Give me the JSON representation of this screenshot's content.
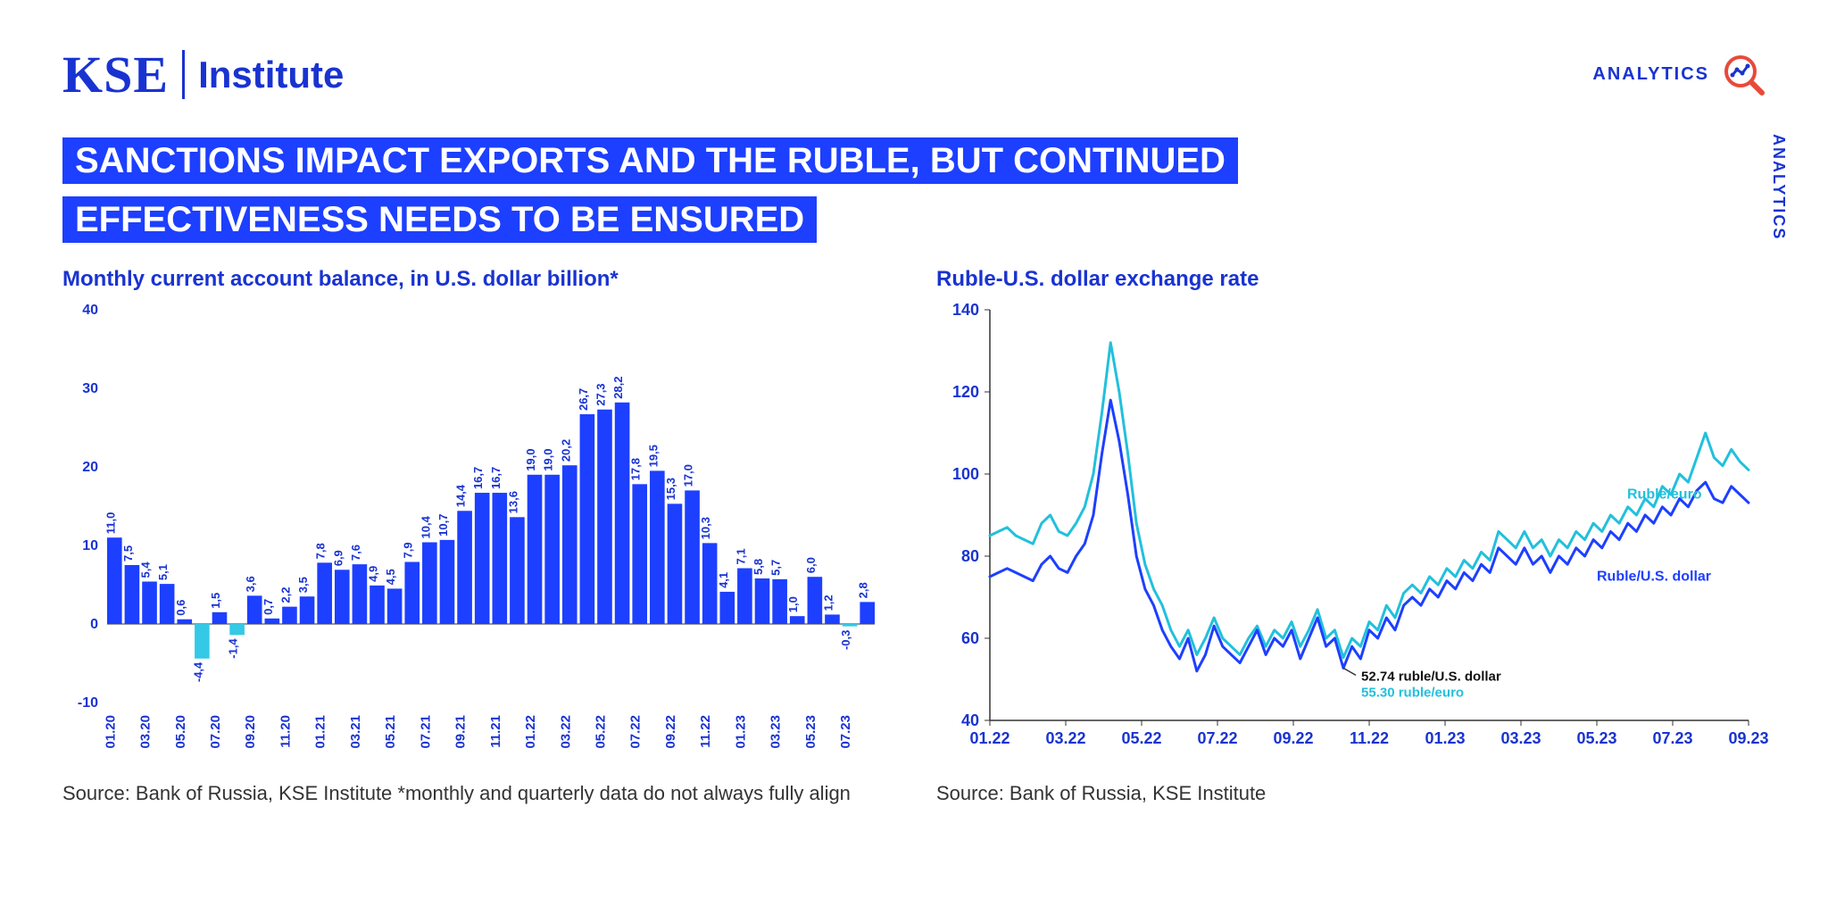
{
  "header": {
    "logo_text": "KSE",
    "institute_text": "Institute",
    "analytics_label": "ANALYTICS",
    "analytics_vertical": "ANALYTICS"
  },
  "headline": "SANCTIONS IMPACT EXPORTS AND THE RUBLE, BUT CONTINUED EFFECTIVENESS NEEDS TO BE ENSURED",
  "colors": {
    "brand_blue": "#1933d1",
    "bar_main": "#1d3fff",
    "bar_neg": "#34c9e6",
    "line_usd": "#1d3fff",
    "line_eur": "#22c0dc",
    "icon_red": "#e84a3a",
    "axis": "#888888",
    "text": "#222222"
  },
  "bar_chart": {
    "title": "Monthly current account balance, in U.S. dollar billion*",
    "source": "Source: Bank of Russia, KSE Institute *monthly and quarterly data do not always fully align",
    "ylim": [
      -10,
      40
    ],
    "ytick_step": 10,
    "x_labels": [
      "01.20",
      "03.20",
      "05.20",
      "07.20",
      "09.20",
      "11.20",
      "01.21",
      "03.21",
      "05.21",
      "07.21",
      "09.21",
      "11.21",
      "01.22",
      "03.22",
      "05.22",
      "07.22",
      "09.22",
      "11.22",
      "01.23",
      "03.23",
      "05.23",
      "07.23"
    ],
    "bar_labels": [
      "11,0",
      "7,5",
      "5,4",
      "5,1",
      "0,6",
      "-4,4",
      "1,5",
      "-1,4",
      "3,6",
      "0,7",
      "2,2",
      "3,5",
      "7,8",
      "6,9",
      "7,6",
      "4,9",
      "4,5",
      "7,9",
      "10,4",
      "10,7",
      "14,4",
      "16,7",
      "16,7",
      "13,6",
      "19,0",
      "19,0",
      "20,2",
      "26,7",
      "27,3",
      "28,2",
      "17,8",
      "19,5",
      "15,3",
      "17,0",
      "10,3",
      "4,1",
      "7,1",
      "5,8",
      "5,7",
      "1,0",
      "6,0",
      "1,2",
      "-0,3",
      "2,8"
    ],
    "values": [
      11.0,
      7.5,
      5.4,
      5.1,
      0.6,
      -4.4,
      1.5,
      -1.4,
      3.6,
      0.7,
      2.2,
      3.5,
      7.8,
      6.9,
      7.6,
      4.9,
      4.5,
      7.9,
      10.4,
      10.7,
      14.4,
      16.7,
      16.7,
      13.6,
      19.0,
      19.0,
      20.2,
      26.7,
      27.3,
      28.2,
      17.8,
      19.5,
      15.3,
      17.0,
      10.3,
      4.1,
      7.1,
      5.8,
      5.7,
      1.0,
      6.0,
      1.2,
      -0.3,
      2.8
    ],
    "label_fontsize": 13,
    "axis_fontsize": 16
  },
  "line_chart": {
    "title": "Ruble-U.S. dollar exchange rate",
    "source": "Source: Bank of Russia, KSE Institute",
    "ylim": [
      40,
      140
    ],
    "ytick_step": 20,
    "x_labels": [
      "01.22",
      "03.22",
      "05.22",
      "07.22",
      "09.22",
      "11.22",
      "01.23",
      "03.23",
      "05.23",
      "07.23",
      "09.23"
    ],
    "legend_usd": "Ruble/U.S. dollar",
    "legend_eur": "Ruble/euro",
    "annotation_usd": "52.74 ruble/U.S. dollar",
    "annotation_eur": "55.30 ruble/euro",
    "label_fontsize": 16,
    "axis_fontsize": 18,
    "series_usd": [
      75,
      76,
      77,
      76,
      75,
      74,
      78,
      80,
      77,
      76,
      80,
      83,
      90,
      105,
      118,
      108,
      95,
      80,
      72,
      68,
      62,
      58,
      55,
      60,
      52,
      56,
      63,
      58,
      56,
      54,
      58,
      62,
      56,
      60,
      58,
      62,
      55,
      60,
      65,
      58,
      60,
      52.74,
      58,
      55,
      62,
      60,
      65,
      62,
      68,
      70,
      68,
      72,
      70,
      74,
      72,
      76,
      74,
      78,
      76,
      82,
      80,
      78,
      82,
      78,
      80,
      76,
      80,
      78,
      82,
      80,
      84,
      82,
      86,
      84,
      88,
      86,
      90,
      88,
      92,
      90,
      94,
      92,
      96,
      98,
      94,
      93,
      97,
      95,
      93
    ],
    "series_eur": [
      85,
      86,
      87,
      85,
      84,
      83,
      88,
      90,
      86,
      85,
      88,
      92,
      100,
      115,
      132,
      120,
      105,
      88,
      78,
      72,
      68,
      62,
      58,
      62,
      56,
      60,
      65,
      60,
      58,
      56,
      60,
      63,
      58,
      62,
      60,
      64,
      58,
      62,
      67,
      60,
      62,
      55.3,
      60,
      58,
      64,
      62,
      68,
      65,
      71,
      73,
      71,
      75,
      73,
      77,
      75,
      79,
      77,
      81,
      79,
      86,
      84,
      82,
      86,
      82,
      84,
      80,
      84,
      82,
      86,
      84,
      88,
      86,
      90,
      88,
      92,
      90,
      94,
      92,
      97,
      95,
      100,
      98,
      104,
      110,
      104,
      102,
      106,
      103,
      101
    ]
  }
}
